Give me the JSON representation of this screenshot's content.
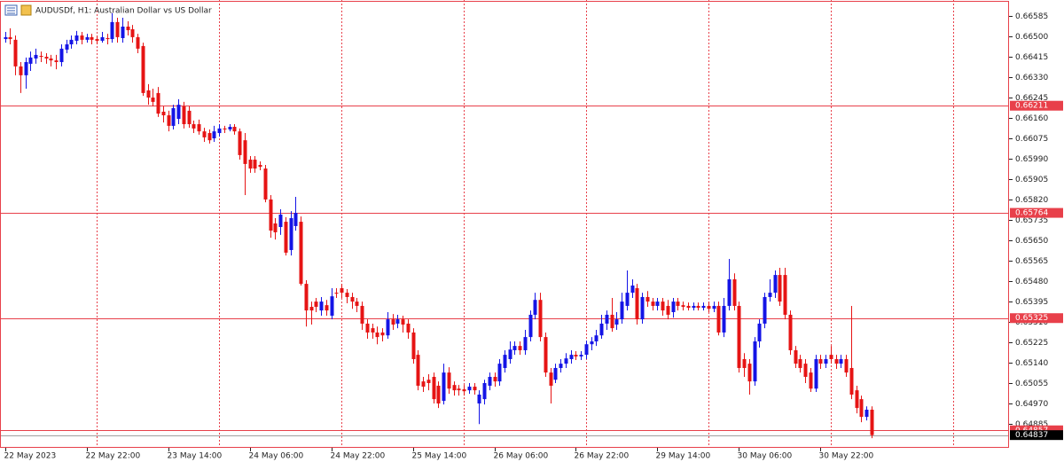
{
  "chart_data": {
    "type": "candlestick",
    "title": "AUDUSDf, H1:  Australian Dollar vs US Dollar",
    "bull_color": "#1414e6",
    "bear_color": "#e61414",
    "open": [
      0.66489,
      0.66497,
      0.66486,
      0.66375,
      0.66338,
      0.66386,
      0.66408,
      0.66419,
      0.66415,
      0.66408,
      0.664,
      0.66393,
      0.66445,
      0.66467,
      0.66482,
      0.66504,
      0.66486,
      0.66497,
      0.66489,
      0.66482,
      0.66493,
      0.66489,
      0.6656,
      0.66493,
      0.66541,
      0.6653,
      0.66497,
      0.6646,
      0.66275,
      0.66245,
      0.66264,
      0.66186,
      0.66171,
      0.66127,
      0.66156,
      0.66208,
      0.6619,
      0.66134,
      0.66134,
      0.66104,
      0.66097,
      0.66075,
      0.66097,
      0.66116,
      0.66112,
      0.66123,
      0.66104,
      0.66067,
      0.65986,
      0.65986,
      0.65964,
      0.65949,
      0.6582,
      0.6572,
      0.65705,
      0.65727,
      0.65609,
      0.65709,
      0.65727,
      0.65468,
      0.65372,
      0.65394,
      0.65357,
      0.65379,
      0.65335,
      0.65431,
      0.6545,
      0.65431,
      0.65413,
      0.65394,
      0.65376,
      0.65302,
      0.65283,
      0.65265,
      0.65265,
      0.65253,
      0.6532,
      0.65302,
      0.6532,
      0.65302,
      0.65265,
      0.65172,
      0.65061,
      0.65068,
      0.6508,
      0.65043,
      0.6498,
      0.65098,
      0.65046,
      0.65031,
      0.65028,
      0.65024,
      0.65039,
      0.64969,
      0.64987,
      0.65043,
      0.6508,
      0.65061,
      0.65117,
      0.65154,
      0.65191,
      0.65209,
      0.65191,
      0.65246,
      0.65339,
      0.65401,
      0.65246,
      0.65098,
      0.65068,
      0.65117,
      0.65135,
      0.65154,
      0.65172,
      0.65165,
      0.65172,
      0.65216,
      0.65228,
      0.65253,
      0.65302,
      0.65339,
      0.65298,
      0.6532,
      0.65376,
      0.65431,
      0.6545,
      0.6532,
      0.65413,
      0.65394,
      0.65376,
      0.65394,
      0.65376,
      0.6535,
      0.65394,
      0.65379,
      0.65376,
      0.65368,
      0.65376,
      0.65368,
      0.65376,
      0.65364,
      0.65376,
      0.65265,
      0.65376,
      0.65487,
      0.65376,
      0.65154,
      0.65135,
      0.65061,
      0.65228,
      0.65302,
      0.65413,
      0.65431,
      0.65505,
      0.65505,
      0.65339,
      0.65191,
      0.65154,
      0.65135,
      0.65098,
      0.65031,
      0.65154,
      0.65135,
      0.65172,
      0.65154,
      0.65135,
      0.65154,
      0.65117,
      0.65024,
      0.64987,
      0.64913,
      0.64943
    ],
    "high": [
      0.66519,
      0.66534,
      0.66504,
      0.66393,
      0.66412,
      0.66437,
      0.66449,
      0.66437,
      0.6643,
      0.66423,
      0.66423,
      0.66467,
      0.66486,
      0.66504,
      0.66523,
      0.66519,
      0.66511,
      0.66511,
      0.66504,
      0.66519,
      0.66511,
      0.66597,
      0.66578,
      0.66578,
      0.66563,
      0.66548,
      0.66511,
      0.66474,
      0.66301,
      0.66282,
      0.66289,
      0.66208,
      0.6619,
      0.66215,
      0.66238,
      0.66227,
      0.66208,
      0.66149,
      0.66153,
      0.66119,
      0.66112,
      0.66127,
      0.66134,
      0.66127,
      0.66134,
      0.66134,
      0.66116,
      0.66097,
      0.66001,
      0.66001,
      0.65979,
      0.65964,
      0.65838,
      0.65742,
      0.65779,
      0.65746,
      0.65771,
      0.65831,
      0.65749,
      0.65483,
      0.65394,
      0.65409,
      0.65413,
      0.65401,
      0.6545,
      0.6545,
      0.65468,
      0.65446,
      0.65431,
      0.65409,
      0.65394,
      0.6532,
      0.65302,
      0.6529,
      0.65283,
      0.6535,
      0.65342,
      0.65339,
      0.65335,
      0.6532,
      0.65283,
      0.65191,
      0.6508,
      0.65091,
      0.65098,
      0.65061,
      0.65135,
      0.6512,
      0.65061,
      0.65046,
      0.65046,
      0.65054,
      0.65054,
      0.65024,
      0.65068,
      0.65098,
      0.65098,
      0.65154,
      0.65191,
      0.65228,
      0.65228,
      0.65228,
      0.65276,
      0.65357,
      0.65431,
      0.65431,
      0.65265,
      0.65117,
      0.65135,
      0.65154,
      0.65179,
      0.65191,
      0.65187,
      0.65187,
      0.65231,
      0.65246,
      0.65276,
      0.65339,
      0.65357,
      0.65409,
      0.6535,
      0.65431,
      0.65524,
      0.65487,
      0.65468,
      0.65431,
      0.65438,
      0.65409,
      0.65409,
      0.65409,
      0.65401,
      0.65409,
      0.65409,
      0.65394,
      0.6539,
      0.6539,
      0.6539,
      0.6539,
      0.65394,
      0.65394,
      0.65394,
      0.65409,
      0.65572,
      0.65512,
      0.65394,
      0.65179,
      0.65154,
      0.65246,
      0.6532,
      0.65431,
      0.65487,
      0.65524,
      0.65535,
      0.65535,
      0.65357,
      0.65209,
      0.65172,
      0.65154,
      0.65117,
      0.65172,
      0.65172,
      0.65172,
      0.65209,
      0.65172,
      0.65172,
      0.65172,
      0.65376,
      0.65043,
      0.65002,
      0.64957,
      0.64957
    ],
    "low": [
      0.66474,
      0.66467,
      0.66338,
      0.66264,
      0.66282,
      0.66356,
      0.66386,
      0.66393,
      0.66386,
      0.66375,
      0.66363,
      0.66375,
      0.6643,
      0.66449,
      0.66467,
      0.66467,
      0.66474,
      0.66467,
      0.66467,
      0.66474,
      0.66467,
      0.66474,
      0.66474,
      0.66474,
      0.66504,
      0.66474,
      0.6643,
      0.66252,
      0.66215,
      0.66208,
      0.66164,
      0.66141,
      0.66104,
      0.66112,
      0.66134,
      0.66116,
      0.66119,
      0.66097,
      0.6609,
      0.6606,
      0.66053,
      0.6606,
      0.66082,
      0.66097,
      0.66104,
      0.6609,
      0.65986,
      0.65838,
      0.65931,
      0.65931,
      0.65942,
      0.65808,
      0.6566,
      0.65653,
      0.65672,
      0.65586,
      0.65586,
      0.6569,
      0.65461,
      0.6529,
      0.65298,
      0.6535,
      0.65335,
      0.65335,
      0.6532,
      0.65409,
      0.65409,
      0.65387,
      0.65364,
      0.6535,
      0.65276,
      0.65239,
      0.65239,
      0.65216,
      0.65228,
      0.65239,
      0.65276,
      0.65283,
      0.65265,
      0.65239,
      0.65135,
      0.65024,
      0.65017,
      0.65024,
      0.64969,
      0.6495,
      0.64965,
      0.65009,
      0.65002,
      0.65002,
      0.65002,
      0.65009,
      0.65006,
      0.64883,
      0.64965,
      0.65024,
      0.65039,
      0.65043,
      0.65098,
      0.65135,
      0.65172,
      0.65172,
      0.65172,
      0.65228,
      0.6532,
      0.65228,
      0.6508,
      0.64969,
      0.65054,
      0.65098,
      0.65117,
      0.65135,
      0.6515,
      0.6515,
      0.65154,
      0.65191,
      0.65209,
      0.65239,
      0.65276,
      0.65268,
      0.65276,
      0.65302,
      0.65357,
      0.65409,
      0.65298,
      0.65302,
      0.65372,
      0.65357,
      0.65357,
      0.65335,
      0.6532,
      0.65327,
      0.65357,
      0.65357,
      0.65357,
      0.65357,
      0.65357,
      0.65357,
      0.6535,
      0.6535,
      0.65253,
      0.65246,
      0.65357,
      0.65357,
      0.65098,
      0.6508,
      0.65006,
      0.65043,
      0.65202,
      0.65283,
      0.65394,
      0.65409,
      0.65376,
      0.6532,
      0.65172,
      0.65117,
      0.65098,
      0.65054,
      0.65017,
      0.65017,
      0.65113,
      0.65117,
      0.65135,
      0.65113,
      0.65117,
      0.6508,
      0.64987,
      0.64928,
      0.64891,
      0.64898,
      0.64824
    ],
    "close": [
      0.66497,
      0.66489,
      0.66375,
      0.66338,
      0.66393,
      0.66412,
      0.66423,
      0.66415,
      0.66408,
      0.664,
      0.66393,
      0.66449,
      0.66467,
      0.66486,
      0.66504,
      0.66486,
      0.66497,
      0.66486,
      0.66482,
      0.66497,
      0.66489,
      0.6656,
      0.66497,
      0.66541,
      0.66526,
      0.66497,
      0.66449,
      0.66264,
      0.66245,
      0.66227,
      0.66178,
      0.66171,
      0.66127,
      0.66201,
      0.66215,
      0.66134,
      0.66134,
      0.66116,
      0.66104,
      0.66079,
      0.66067,
      0.66104,
      0.66116,
      0.66112,
      0.66123,
      0.66104,
      0.66005,
      0.65968,
      0.65949,
      0.65949,
      0.65956,
      0.6582,
      0.6569,
      0.65683,
      0.65757,
      0.65598,
      0.65742,
      0.65764,
      0.65468,
      0.65357,
      0.65357,
      0.65372,
      0.65394,
      0.65357,
      0.65416,
      0.65427,
      0.65431,
      0.65413,
      0.65394,
      0.65376,
      0.65302,
      0.65265,
      0.65265,
      0.65246,
      0.65253,
      0.6532,
      0.65298,
      0.6532,
      0.65298,
      0.65265,
      0.65154,
      0.65043,
      0.65039,
      0.65054,
      0.64987,
      0.64969,
      0.65098,
      0.65031,
      0.65024,
      0.65024,
      0.6502,
      0.65039,
      0.65024,
      0.65006,
      0.65054,
      0.6508,
      0.65061,
      0.65135,
      0.65172,
      0.65194,
      0.65209,
      0.65191,
      0.65246,
      0.65339,
      0.65401,
      0.65246,
      0.65098,
      0.65043,
      0.65117,
      0.65135,
      0.65157,
      0.65172,
      0.65165,
      0.65172,
      0.65216,
      0.65228,
      0.65253,
      0.65302,
      0.65339,
      0.65283,
      0.6532,
      0.65394,
      0.65431,
      0.65461,
      0.6532,
      0.65413,
      0.65394,
      0.65376,
      0.65394,
      0.65357,
      0.65339,
      0.65394,
      0.65376,
      0.65372,
      0.65368,
      0.65376,
      0.65368,
      0.65376,
      0.65364,
      0.65376,
      0.65265,
      0.65376,
      0.65487,
      0.65376,
      0.65117,
      0.65117,
      0.65061,
      0.65228,
      0.65302,
      0.65413,
      0.65431,
      0.65505,
      0.65394,
      0.65339,
      0.65191,
      0.65135,
      0.65117,
      0.6508,
      0.65031,
      0.65154,
      0.65135,
      0.65154,
      0.65154,
      0.65135,
      0.65154,
      0.65098,
      0.65006,
      0.6495,
      0.64913,
      0.64943,
      0.64837
    ],
    "xlim": [
      -1,
      197
    ],
    "xticks": [
      {
        "value": 0,
        "label": "22 May 2023"
      },
      {
        "value": 16,
        "label": "22 May 22:00"
      },
      {
        "value": 32,
        "label": "23 May 14:00"
      },
      {
        "value": 48,
        "label": "24 May 06:00"
      },
      {
        "value": 64,
        "label": "24 May 22:00"
      },
      {
        "value": 80,
        "label": "25 May 14:00"
      },
      {
        "value": 96,
        "label": "26 May 06:00"
      },
      {
        "value": 112,
        "label": "26 May 22:00"
      },
      {
        "value": 128,
        "label": "29 May 14:00"
      },
      {
        "value": 144,
        "label": "30 May 06:00"
      },
      {
        "value": 160,
        "label": "30 May 22:00"
      }
    ],
    "xgrid": [
      18,
      42,
      66,
      90,
      114,
      138,
      162,
      186
    ],
    "ylim": [
      0.64784,
      0.66652
    ],
    "yticks": [
      0.66585,
      {
        "value": 0.665,
        "label": "0.66500"
      },
      0.66415,
      {
        "value": 0.6633,
        "label": "0.66330"
      },
      0.66245,
      {
        "value": 0.6616,
        "label": "0.66160"
      },
      0.66075,
      {
        "value": 0.6599,
        "label": "0.65990"
      },
      0.65905,
      {
        "value": 0.6582,
        "label": "0.65820"
      },
      0.65735,
      {
        "value": 0.6565,
        "label": "0.65650"
      },
      0.65565,
      {
        "value": 0.6548,
        "label": "0.65480"
      },
      0.65395,
      {
        "value": 0.6531,
        "label": "0.65310"
      },
      0.65225,
      {
        "value": 0.6514,
        "label": "0.65140"
      },
      0.65055,
      {
        "value": 0.6497,
        "label": "0.64970"
      },
      0.64885
    ],
    "hlines": [
      0.66211,
      0.65764,
      0.65325,
      0.64857
    ],
    "hline_color": "#e8404a",
    "current_price": 0.64837
  }
}
